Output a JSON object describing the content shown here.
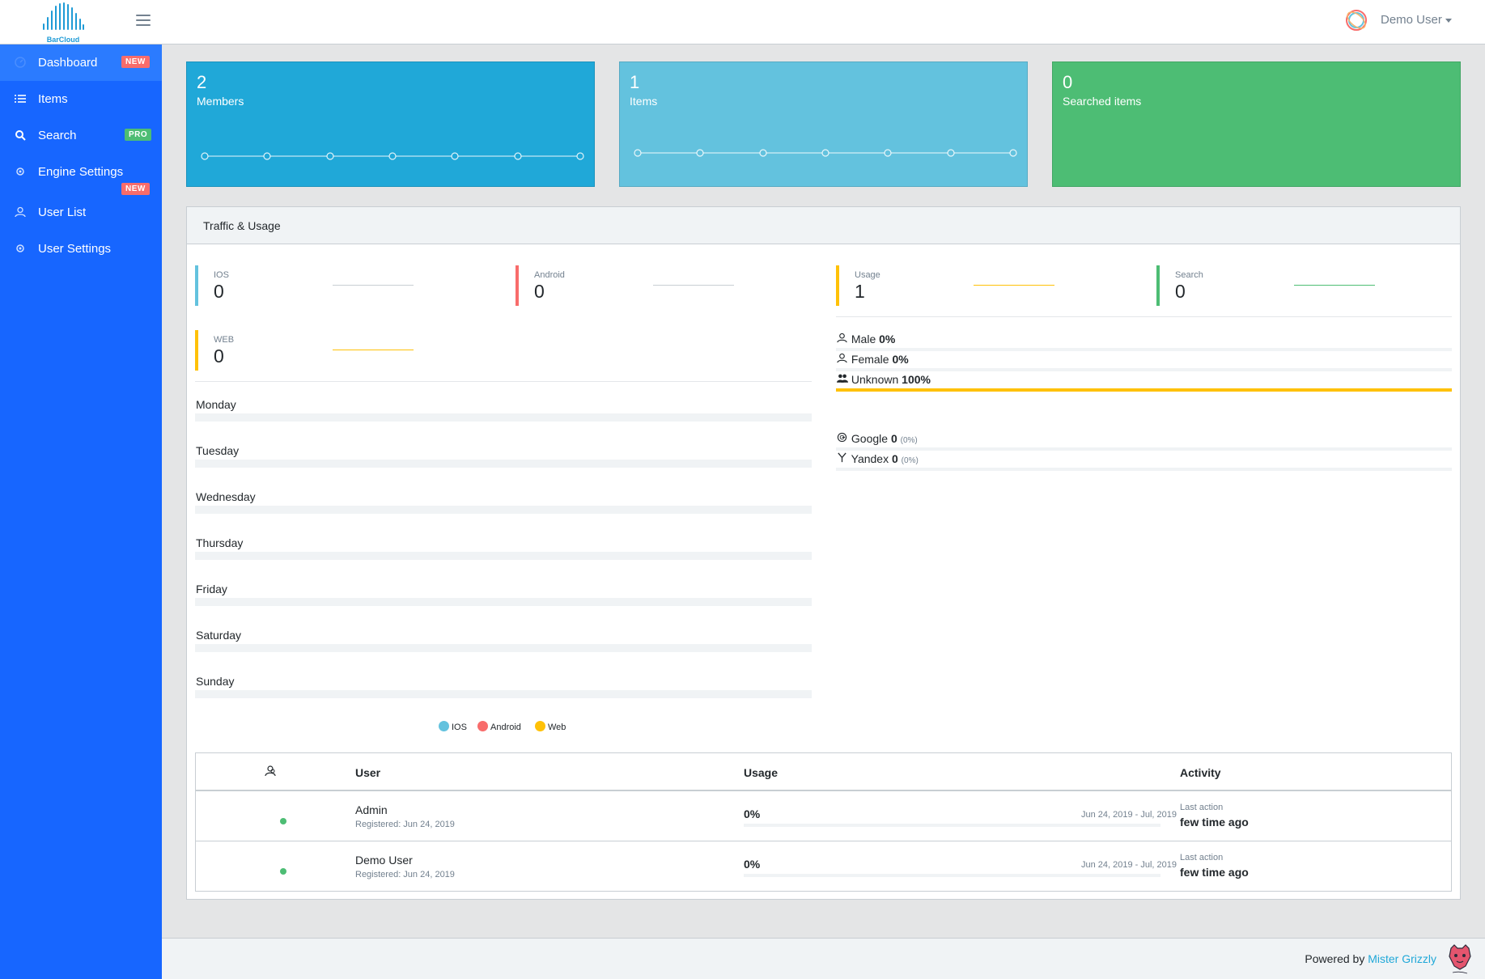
{
  "brand": {
    "logo_text": "BarCloud",
    "logo_color": "#1f9bd6"
  },
  "header": {
    "user_name": "Demo User",
    "menu_icon": "hamburger-icon",
    "avatar_icon": "ring-avatar-icon"
  },
  "sidebar": {
    "bg_color": "#1766ff",
    "items": [
      {
        "label": "Dashboard",
        "icon": "speedometer-icon",
        "badge": "NEW"
      },
      {
        "label": "Items",
        "icon": "list-icon"
      },
      {
        "label": "Search",
        "icon": "magnifier-icon",
        "badge": "PRO"
      },
      {
        "label": "Engine Settings",
        "icon": "gear-icon",
        "badge": "NEW"
      },
      {
        "label": "User List",
        "icon": "user-icon"
      },
      {
        "label": "User Settings",
        "icon": "gear-icon"
      }
    ]
  },
  "stats": [
    {
      "value": "2",
      "label": "Members",
      "color": "#20a8d8"
    },
    {
      "value": "1",
      "label": "Items",
      "color": "#63c2de"
    },
    {
      "value": "0",
      "label": "Searched items",
      "color": "#4dbd74"
    }
  ],
  "traffic": {
    "title": "Traffic & Usage",
    "callouts": [
      {
        "label": "IOS",
        "value": "0",
        "color": "#63c2de"
      },
      {
        "label": "Android",
        "value": "0",
        "color": "#f86c6b"
      },
      {
        "label": "Usage",
        "value": "1",
        "color": "#ffc107"
      },
      {
        "label": "Search",
        "value": "0",
        "color": "#4dbd74"
      },
      {
        "label": "WEB",
        "value": "0",
        "color": "#ffc107"
      }
    ],
    "days": [
      "Monday",
      "Tuesday",
      "Wednesday",
      "Thursday",
      "Friday",
      "Saturday",
      "Sunday"
    ],
    "legend": [
      {
        "label": "IOS",
        "color": "#63c2de"
      },
      {
        "label": "Android",
        "color": "#f86c6b"
      },
      {
        "label": "Web",
        "color": "#ffc107"
      }
    ],
    "gender": [
      {
        "label": "Male",
        "value": "0%",
        "fill": 0,
        "icon": "user-icon"
      },
      {
        "label": "Female",
        "value": "0%",
        "fill": 0,
        "icon": "user-female-icon"
      },
      {
        "label": "Unknown",
        "value": "100%",
        "fill": 1,
        "icon": "users-icon",
        "color": "#ffc107"
      }
    ],
    "engines": [
      {
        "label": "Google",
        "value": "0",
        "pct": "(0%)",
        "icon": "google-icon"
      },
      {
        "label": "Yandex",
        "value": "0",
        "pct": "(0%)",
        "icon": "yandex-icon"
      }
    ]
  },
  "users_table": {
    "header_icon": "people-icon",
    "columns": {
      "user": "User",
      "usage": "Usage",
      "activity": "Activity"
    },
    "rows": [
      {
        "name": "Admin",
        "registered": "Registered: Jun 24, 2019",
        "usage": "0%",
        "range": "Jun 24, 2019 - Jul, 2019",
        "last_action_label": "Last action",
        "last_action": "few time ago"
      },
      {
        "name": "Demo User",
        "registered": "Registered: Jun 24, 2019",
        "usage": "0%",
        "range": "Jun 24, 2019 - Jul, 2019",
        "last_action_label": "Last action",
        "last_action": "few time ago"
      }
    ]
  },
  "footer": {
    "prefix": "Powered by",
    "link": "Mister Grizzly",
    "logo_icon": "grizzly-logo-icon"
  }
}
